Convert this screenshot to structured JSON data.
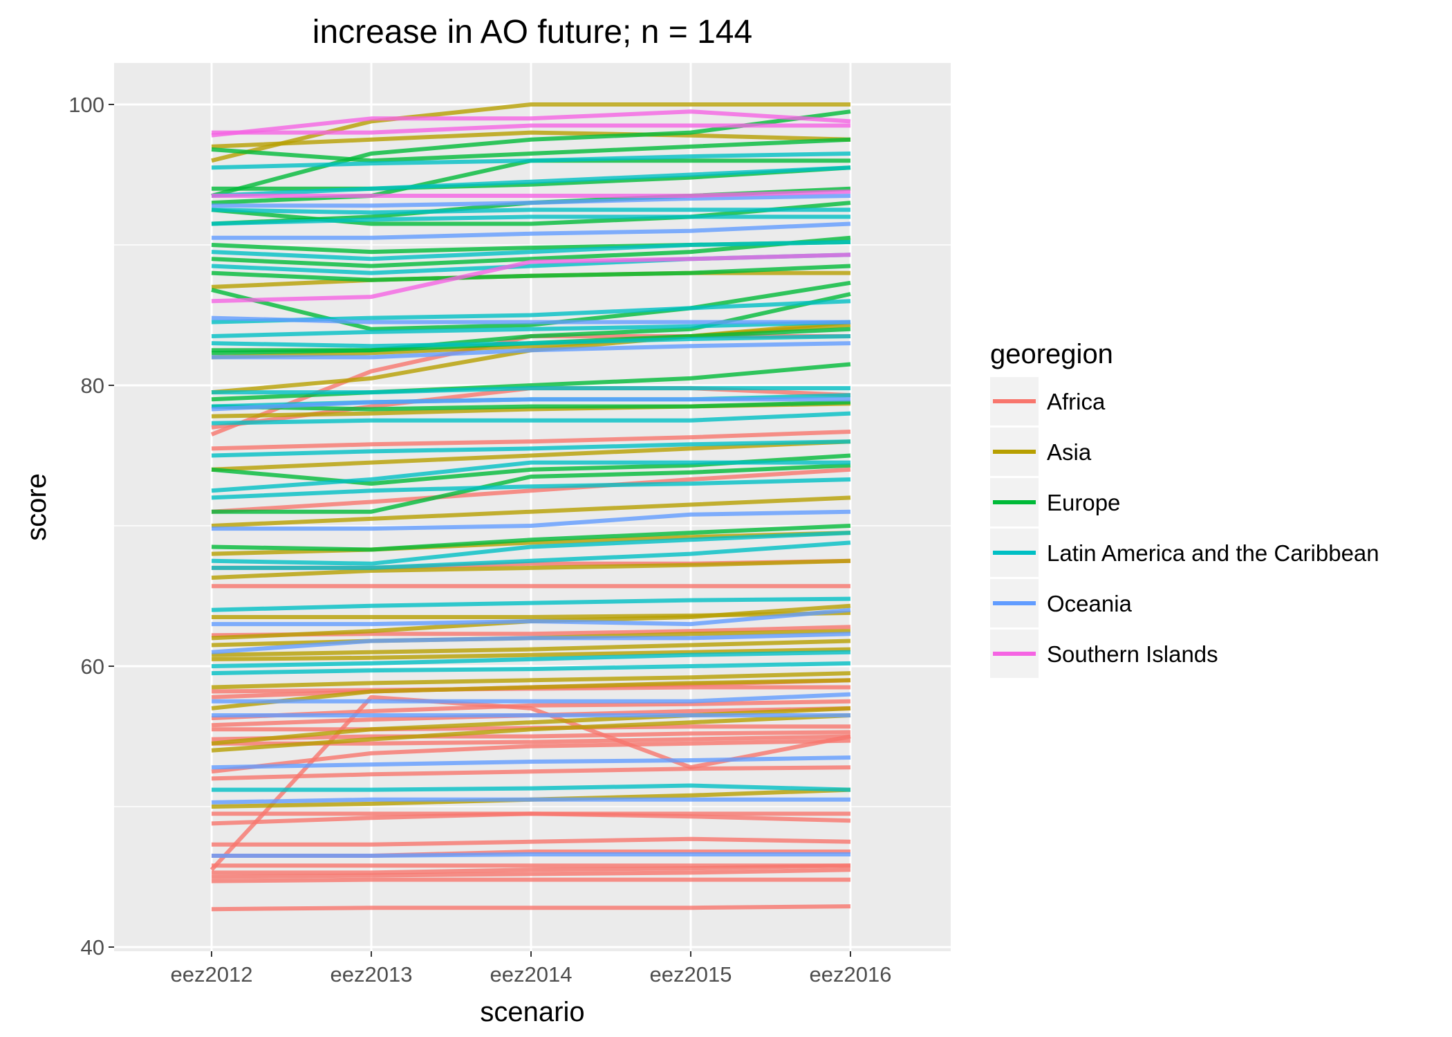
{
  "chart_data": {
    "type": "line",
    "title": "increase in AO future; n = 144",
    "xlabel": "scenario",
    "ylabel": "score",
    "categories": [
      "eez2012",
      "eez2013",
      "eez2014",
      "eez2015",
      "eez2016"
    ],
    "ylim": [
      40,
      103
    ],
    "yticks": [
      40,
      60,
      80,
      100
    ],
    "grid": true,
    "legend": {
      "title": "georegion",
      "position": "right"
    },
    "regions": [
      {
        "name": "Africa",
        "color": "#F8766D"
      },
      {
        "name": "Asia",
        "color": "#B79F00"
      },
      {
        "name": "Europe",
        "color": "#00BA38"
      },
      {
        "name": "Latin America and the Caribbean",
        "color": "#00BFC4"
      },
      {
        "name": "Oceania",
        "color": "#619CFF"
      },
      {
        "name": "Southern Islands",
        "color": "#F564E3"
      }
    ],
    "series": [
      {
        "region": "Africa",
        "values": [
          45.5,
          57.8,
          57.0,
          52.8,
          55.0
        ]
      },
      {
        "region": "Africa",
        "values": [
          77.0,
          78.5,
          79.8,
          79.8,
          79.3
        ]
      },
      {
        "region": "Africa",
        "values": [
          76.5,
          81.0,
          83.5,
          83.5,
          83.5
        ]
      },
      {
        "region": "Africa",
        "values": [
          75.5,
          75.8,
          76.0,
          76.3,
          76.7
        ]
      },
      {
        "region": "Africa",
        "values": [
          71.0,
          71.7,
          72.5,
          73.3,
          74.0
        ]
      },
      {
        "region": "Africa",
        "values": [
          67.0,
          67.0,
          67.3,
          67.3,
          67.5
        ]
      },
      {
        "region": "Africa",
        "values": [
          65.7,
          65.7,
          65.7,
          65.7,
          65.7
        ]
      },
      {
        "region": "Africa",
        "values": [
          62.2,
          62.3,
          62.3,
          62.5,
          62.8
        ]
      },
      {
        "region": "Africa",
        "values": [
          58.2,
          58.3,
          58.4,
          58.5,
          58.5
        ]
      },
      {
        "region": "Africa",
        "values": [
          57.8,
          58.2,
          58.5,
          58.7,
          59.0
        ]
      },
      {
        "region": "Africa",
        "values": [
          56.3,
          56.8,
          57.2,
          57.3,
          57.5
        ]
      },
      {
        "region": "Africa",
        "values": [
          55.8,
          56.2,
          56.5,
          56.8,
          57.0
        ]
      },
      {
        "region": "Africa",
        "values": [
          55.5,
          55.5,
          55.6,
          55.7,
          55.7
        ]
      },
      {
        "region": "Africa",
        "values": [
          54.8,
          55.0,
          55.0,
          55.2,
          55.3
        ]
      },
      {
        "region": "Africa",
        "values": [
          54.5,
          54.5,
          54.6,
          54.8,
          55.0
        ]
      },
      {
        "region": "Africa",
        "values": [
          52.5,
          53.8,
          54.3,
          54.5,
          54.7
        ]
      },
      {
        "region": "Africa",
        "values": [
          52.0,
          52.3,
          52.5,
          52.7,
          52.8
        ]
      },
      {
        "region": "Africa",
        "values": [
          49.5,
          49.5,
          49.5,
          49.5,
          49.5
        ]
      },
      {
        "region": "Africa",
        "values": [
          48.8,
          49.2,
          49.5,
          49.3,
          49.0
        ]
      },
      {
        "region": "Africa",
        "values": [
          47.3,
          47.3,
          47.5,
          47.7,
          47.5
        ]
      },
      {
        "region": "Africa",
        "values": [
          46.5,
          46.5,
          46.8,
          46.8,
          46.8
        ]
      },
      {
        "region": "Africa",
        "values": [
          45.8,
          45.8,
          45.8,
          45.8,
          45.8
        ]
      },
      {
        "region": "Africa",
        "values": [
          45.3,
          45.3,
          45.5,
          45.6,
          45.8
        ]
      },
      {
        "region": "Africa",
        "values": [
          45.0,
          45.1,
          45.2,
          45.3,
          45.5
        ]
      },
      {
        "region": "Africa",
        "values": [
          44.7,
          44.8,
          44.8,
          44.8,
          44.8
        ]
      },
      {
        "region": "Africa",
        "values": [
          42.7,
          42.8,
          42.8,
          42.8,
          42.9
        ]
      },
      {
        "region": "Asia",
        "values": [
          96.0,
          98.8,
          100.0,
          100.0,
          100.0
        ]
      },
      {
        "region": "Asia",
        "values": [
          97.0,
          97.5,
          98.0,
          97.8,
          97.5
        ]
      },
      {
        "region": "Asia",
        "values": [
          87.0,
          87.5,
          87.8,
          88.0,
          88.0
        ]
      },
      {
        "region": "Asia",
        "values": [
          82.0,
          82.3,
          82.8,
          83.5,
          84.3
        ]
      },
      {
        "region": "Asia",
        "values": [
          79.5,
          80.5,
          82.5,
          83.5,
          84.5
        ]
      },
      {
        "region": "Asia",
        "values": [
          77.8,
          78.0,
          78.3,
          78.5,
          78.7
        ]
      },
      {
        "region": "Asia",
        "values": [
          74.0,
          74.5,
          75.0,
          75.5,
          76.0
        ]
      },
      {
        "region": "Asia",
        "values": [
          70.0,
          70.5,
          71.0,
          71.5,
          72.0
        ]
      },
      {
        "region": "Asia",
        "values": [
          68.0,
          68.3,
          68.8,
          69.2,
          69.5
        ]
      },
      {
        "region": "Asia",
        "values": [
          66.3,
          66.8,
          67.0,
          67.2,
          67.5
        ]
      },
      {
        "region": "Asia",
        "values": [
          63.5,
          63.5,
          63.5,
          63.6,
          63.8
        ]
      },
      {
        "region": "Asia",
        "values": [
          62.0,
          62.5,
          63.2,
          63.5,
          64.3
        ]
      },
      {
        "region": "Asia",
        "values": [
          61.5,
          61.8,
          62.0,
          62.3,
          62.5
        ]
      },
      {
        "region": "Asia",
        "values": [
          60.8,
          61.0,
          61.2,
          61.5,
          61.8
        ]
      },
      {
        "region": "Asia",
        "values": [
          60.5,
          60.6,
          60.8,
          61.0,
          61.2
        ]
      },
      {
        "region": "Asia",
        "values": [
          58.5,
          58.8,
          59.0,
          59.2,
          59.5
        ]
      },
      {
        "region": "Asia",
        "values": [
          57.0,
          58.2,
          58.5,
          58.8,
          59.0
        ]
      },
      {
        "region": "Asia",
        "values": [
          54.5,
          55.5,
          56.0,
          56.5,
          57.0
        ]
      },
      {
        "region": "Asia",
        "values": [
          54.0,
          54.8,
          55.5,
          56.0,
          56.5
        ]
      },
      {
        "region": "Asia",
        "values": [
          50.0,
          50.2,
          50.5,
          50.8,
          51.2
        ]
      },
      {
        "region": "Europe",
        "values": [
          93.5,
          96.5,
          97.5,
          98.0,
          99.5
        ]
      },
      {
        "region": "Europe",
        "values": [
          96.8,
          96.0,
          96.5,
          97.0,
          97.5
        ]
      },
      {
        "region": "Europe",
        "values": [
          93.0,
          93.5,
          96.0,
          96.0,
          96.0
        ]
      },
      {
        "region": "Europe",
        "values": [
          94.0,
          94.0,
          94.3,
          94.8,
          95.5
        ]
      },
      {
        "region": "Europe",
        "values": [
          91.5,
          92.0,
          93.0,
          93.5,
          94.0
        ]
      },
      {
        "region": "Europe",
        "values": [
          92.5,
          91.5,
          91.5,
          92.0,
          93.0
        ]
      },
      {
        "region": "Europe",
        "values": [
          90.0,
          89.5,
          89.8,
          90.0,
          90.2
        ]
      },
      {
        "region": "Europe",
        "values": [
          89.0,
          88.5,
          89.0,
          89.5,
          90.5
        ]
      },
      {
        "region": "Europe",
        "values": [
          88.0,
          87.5,
          87.8,
          88.0,
          88.5
        ]
      },
      {
        "region": "Europe",
        "values": [
          86.8,
          84.0,
          84.3,
          85.5,
          87.3
        ]
      },
      {
        "region": "Europe",
        "values": [
          82.3,
          82.5,
          83.5,
          84.0,
          86.5
        ]
      },
      {
        "region": "Europe",
        "values": [
          82.5,
          82.5,
          83.0,
          83.5,
          84.0
        ]
      },
      {
        "region": "Europe",
        "values": [
          79.0,
          79.5,
          80.0,
          80.5,
          81.5
        ]
      },
      {
        "region": "Europe",
        "values": [
          78.5,
          78.3,
          78.5,
          78.5,
          78.8
        ]
      },
      {
        "region": "Europe",
        "values": [
          74.0,
          73.0,
          74.0,
          74.3,
          75.0
        ]
      },
      {
        "region": "Europe",
        "values": [
          71.0,
          71.0,
          73.5,
          73.8,
          74.3
        ]
      },
      {
        "region": "Europe",
        "values": [
          68.5,
          68.3,
          69.0,
          69.5,
          70.0
        ]
      },
      {
        "region": "Latin America and the Caribbean",
        "values": [
          95.5,
          95.8,
          96.0,
          96.3,
          96.5
        ]
      },
      {
        "region": "Latin America and the Caribbean",
        "values": [
          93.5,
          94.0,
          94.5,
          95.0,
          95.5
        ]
      },
      {
        "region": "Latin America and the Caribbean",
        "values": [
          92.5,
          92.3,
          92.5,
          92.5,
          92.5
        ]
      },
      {
        "region": "Latin America and the Caribbean",
        "values": [
          91.5,
          91.8,
          92.0,
          92.0,
          92.0
        ]
      },
      {
        "region": "Latin America and the Caribbean",
        "values": [
          89.5,
          89.0,
          89.5,
          90.0,
          90.2
        ]
      },
      {
        "region": "Latin America and the Caribbean",
        "values": [
          88.5,
          88.0,
          88.5,
          89.0,
          89.3
        ]
      },
      {
        "region": "Latin America and the Caribbean",
        "values": [
          84.5,
          84.8,
          85.0,
          85.5,
          86.0
        ]
      },
      {
        "region": "Latin America and the Caribbean",
        "values": [
          83.5,
          83.8,
          84.0,
          84.2,
          84.5
        ]
      },
      {
        "region": "Latin America and the Caribbean",
        "values": [
          83.0,
          82.8,
          83.0,
          83.3,
          83.5
        ]
      },
      {
        "region": "Latin America and the Caribbean",
        "values": [
          79.5,
          79.5,
          79.8,
          79.8,
          79.8
        ]
      },
      {
        "region": "Latin America and the Caribbean",
        "values": [
          78.5,
          78.8,
          79.0,
          79.0,
          79.3
        ]
      },
      {
        "region": "Latin America and the Caribbean",
        "values": [
          77.3,
          77.5,
          77.5,
          77.5,
          78.0
        ]
      },
      {
        "region": "Latin America and the Caribbean",
        "values": [
          75.0,
          75.3,
          75.5,
          75.8,
          76.0
        ]
      },
      {
        "region": "Latin America and the Caribbean",
        "values": [
          72.5,
          73.3,
          74.5,
          74.5,
          74.5
        ]
      },
      {
        "region": "Latin America and the Caribbean",
        "values": [
          72.0,
          72.5,
          72.8,
          73.0,
          73.3
        ]
      },
      {
        "region": "Latin America and the Caribbean",
        "values": [
          67.5,
          67.3,
          68.5,
          69.0,
          69.5
        ]
      },
      {
        "region": "Latin America and the Caribbean",
        "values": [
          67.0,
          67.0,
          67.5,
          68.0,
          68.8
        ]
      },
      {
        "region": "Latin America and the Caribbean",
        "values": [
          64.0,
          64.3,
          64.5,
          64.7,
          64.8
        ]
      },
      {
        "region": "Latin America and the Caribbean",
        "values": [
          60.0,
          60.2,
          60.5,
          60.8,
          61.0
        ]
      },
      {
        "region": "Latin America and the Caribbean",
        "values": [
          59.5,
          59.7,
          59.8,
          60.0,
          60.2
        ]
      },
      {
        "region": "Latin America and the Caribbean",
        "values": [
          51.2,
          51.2,
          51.3,
          51.5,
          51.2
        ]
      },
      {
        "region": "Oceania",
        "values": [
          92.8,
          92.8,
          93.0,
          93.3,
          93.5
        ]
      },
      {
        "region": "Oceania",
        "values": [
          90.5,
          90.5,
          90.8,
          91.0,
          91.5
        ]
      },
      {
        "region": "Oceania",
        "values": [
          84.8,
          84.5,
          84.5,
          84.5,
          84.5
        ]
      },
      {
        "region": "Oceania",
        "values": [
          82.0,
          82.0,
          82.5,
          82.8,
          83.0
        ]
      },
      {
        "region": "Oceania",
        "values": [
          78.3,
          78.8,
          79.0,
          79.0,
          79.0
        ]
      },
      {
        "region": "Oceania",
        "values": [
          69.8,
          69.8,
          70.0,
          70.8,
          71.0
        ]
      },
      {
        "region": "Oceania",
        "values": [
          63.0,
          63.0,
          63.2,
          63.0,
          64.0
        ]
      },
      {
        "region": "Oceania",
        "values": [
          61.0,
          61.8,
          62.0,
          62.0,
          62.3
        ]
      },
      {
        "region": "Oceania",
        "values": [
          57.5,
          57.5,
          57.5,
          57.5,
          58.0
        ]
      },
      {
        "region": "Oceania",
        "values": [
          56.5,
          56.5,
          56.5,
          56.5,
          56.5
        ]
      },
      {
        "region": "Oceania",
        "values": [
          52.8,
          53.0,
          53.2,
          53.3,
          53.5
        ]
      },
      {
        "region": "Oceania",
        "values": [
          50.3,
          50.5,
          50.5,
          50.5,
          50.5
        ]
      },
      {
        "region": "Oceania",
        "values": [
          46.5,
          46.5,
          46.6,
          46.6,
          46.6
        ]
      },
      {
        "region": "Southern Islands",
        "values": [
          98.0,
          98.0,
          98.5,
          98.5,
          98.5
        ]
      },
      {
        "region": "Southern Islands",
        "values": [
          97.8,
          99.0,
          99.0,
          99.5,
          98.8
        ]
      },
      {
        "region": "Southern Islands",
        "values": [
          86.0,
          86.3,
          88.8,
          89.0,
          89.3
        ]
      },
      {
        "region": "Southern Islands",
        "values": [
          93.5,
          93.5,
          93.5,
          93.5,
          93.8
        ]
      }
    ]
  }
}
